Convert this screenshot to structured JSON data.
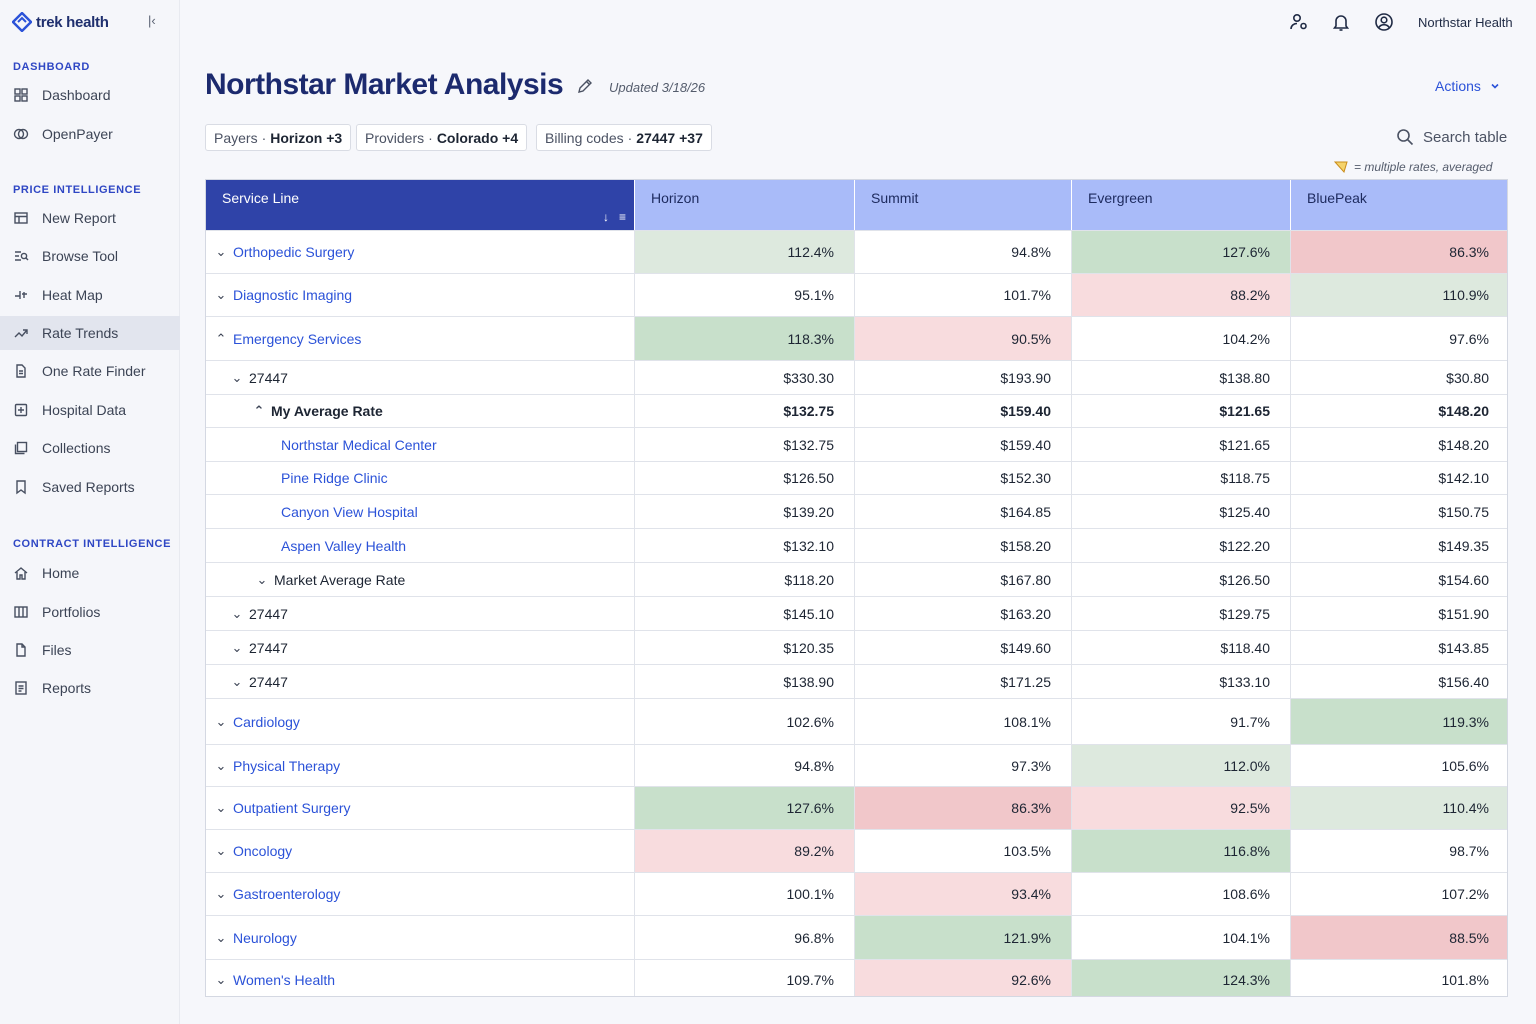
{
  "brand": {
    "name": "trek health"
  },
  "sidebar": {
    "sections": [
      {
        "title": "DASHBOARD",
        "items": [
          {
            "label": "Dashboard",
            "icon": "grid-icon"
          },
          {
            "label": "OpenPayer",
            "icon": "openpayer-icon"
          }
        ]
      },
      {
        "title": "PRICE INTELLIGENCE",
        "items": [
          {
            "label": "New Report",
            "icon": "table-icon"
          },
          {
            "label": "Browse Tool",
            "icon": "browse-icon"
          },
          {
            "label": "Heat Map",
            "icon": "heatmap-icon"
          },
          {
            "label": "Rate Trends",
            "icon": "trend-icon",
            "active": true
          },
          {
            "label": "One Rate Finder",
            "icon": "document-icon"
          },
          {
            "label": "Hospital Data",
            "icon": "hospital-icon"
          },
          {
            "label": "Collections",
            "icon": "collections-icon"
          },
          {
            "label": "Saved Reports",
            "icon": "bookmark-icon"
          }
        ]
      },
      {
        "title": "CONTRACT INTELLIGENCE",
        "items": [
          {
            "label": "Home",
            "icon": "home-icon"
          },
          {
            "label": "Portfolios",
            "icon": "columns-icon"
          },
          {
            "label": "Files",
            "icon": "file-icon"
          },
          {
            "label": "Reports",
            "icon": "report-icon"
          }
        ]
      }
    ]
  },
  "topbar": {
    "org_name": "Northstar Health"
  },
  "header": {
    "title": "Northstar Market Analysis",
    "updated": "Updated 3/18/26",
    "actions_label": "Actions"
  },
  "filters": {
    "payers": {
      "label": "Payers",
      "value": "Horizon +3"
    },
    "providers": {
      "label": "Providers",
      "value": "Colorado +4"
    },
    "billing": {
      "label": "Billing codes",
      "value": "27447 +37"
    }
  },
  "search": {
    "label": "Search table"
  },
  "legend_note": "= multiple rates, averaged",
  "table": {
    "first_header": "Service Line",
    "columns": [
      "Horizon",
      "Summit",
      "Evergreen",
      "BluePeak"
    ],
    "rows": [
      {
        "label": "Orthopedic Surgery",
        "type": "service",
        "chev": "down",
        "values": [
          "112.4%",
          "94.8%",
          "127.6%",
          "86.3%"
        ],
        "tints": [
          "g1",
          "",
          "g2",
          "r2"
        ]
      },
      {
        "label": "Diagnostic Imaging",
        "type": "service",
        "chev": "down",
        "values": [
          "95.1%",
          "101.7%",
          "88.2%",
          "110.9%"
        ],
        "tints": [
          "",
          "",
          "r1",
          "g1"
        ]
      },
      {
        "label": "Emergency Services",
        "type": "service",
        "chev": "up",
        "values": [
          "118.3%",
          "90.5%",
          "104.2%",
          "97.6%"
        ],
        "tints": [
          "g2",
          "r1",
          "",
          ""
        ]
      },
      {
        "label": "27447",
        "type": "code",
        "chev": "down",
        "values": [
          "$330.30",
          "$193.90",
          "$138.80",
          "$30.80"
        ]
      },
      {
        "label": "My Average Rate",
        "type": "avg",
        "chev": "up",
        "bold": true,
        "values": [
          "$132.75",
          "$159.40",
          "$121.65",
          "$148.20"
        ]
      },
      {
        "label": "Northstar Medical Center",
        "type": "provider",
        "values": [
          "$132.75",
          "$159.40",
          "$121.65",
          "$148.20"
        ]
      },
      {
        "label": "Pine Ridge Clinic",
        "type": "provider",
        "values": [
          "$126.50",
          "$152.30",
          "$118.75",
          "$142.10"
        ]
      },
      {
        "label": "Canyon View Hospital",
        "type": "provider",
        "values": [
          "$139.20",
          "$164.85",
          "$125.40",
          "$150.75"
        ]
      },
      {
        "label": "Aspen Valley Health",
        "type": "provider",
        "values": [
          "$132.10",
          "$158.20",
          "$122.20",
          "$149.35"
        ]
      },
      {
        "label": "Market Average Rate",
        "type": "market",
        "chev": "down",
        "values": [
          "$118.20",
          "$167.80",
          "$126.50",
          "$154.60"
        ]
      },
      {
        "label": "27447",
        "type": "code",
        "chev": "down",
        "values": [
          "$145.10",
          "$163.20",
          "$129.75",
          "$151.90"
        ]
      },
      {
        "label": "27447",
        "type": "code",
        "chev": "down",
        "values": [
          "$120.35",
          "$149.60",
          "$118.40",
          "$143.85"
        ]
      },
      {
        "label": "27447",
        "type": "code",
        "chev": "down",
        "values": [
          "$138.90",
          "$171.25",
          "$133.10",
          "$156.40"
        ]
      },
      {
        "label": "Cardiology",
        "type": "service",
        "chev": "down",
        "values": [
          "102.6%",
          "108.1%",
          "91.7%",
          "119.3%"
        ],
        "tints": [
          "",
          "",
          "",
          "g2"
        ]
      },
      {
        "label": "Physical Therapy",
        "type": "service",
        "chev": "down",
        "values": [
          "94.8%",
          "97.3%",
          "112.0%",
          "105.6%"
        ],
        "tints": [
          "",
          "",
          "g1",
          ""
        ]
      },
      {
        "label": "Outpatient Surgery",
        "type": "service",
        "chev": "down",
        "values": [
          "127.6%",
          "86.3%",
          "92.5%",
          "110.4%"
        ],
        "tints": [
          "g2",
          "r2",
          "r1",
          "g1"
        ]
      },
      {
        "label": "Oncology",
        "type": "service",
        "chev": "down",
        "values": [
          "89.2%",
          "103.5%",
          "116.8%",
          "98.7%"
        ],
        "tints": [
          "r1",
          "",
          "g2",
          ""
        ]
      },
      {
        "label": "Gastroenterology",
        "type": "service",
        "chev": "down",
        "values": [
          "100.1%",
          "93.4%",
          "108.6%",
          "107.2%"
        ],
        "tints": [
          "",
          "r1",
          "",
          ""
        ]
      },
      {
        "label": "Neurology",
        "type": "service",
        "chev": "down",
        "values": [
          "96.8%",
          "121.9%",
          "104.1%",
          "88.5%"
        ],
        "tints": [
          "",
          "g2",
          "",
          "r2"
        ]
      },
      {
        "label": "Women's Health",
        "type": "service",
        "chev": "down",
        "values": [
          "109.7%",
          "92.6%",
          "124.3%",
          "101.8%"
        ],
        "tints": [
          "",
          "r1",
          "g2",
          ""
        ]
      }
    ]
  }
}
